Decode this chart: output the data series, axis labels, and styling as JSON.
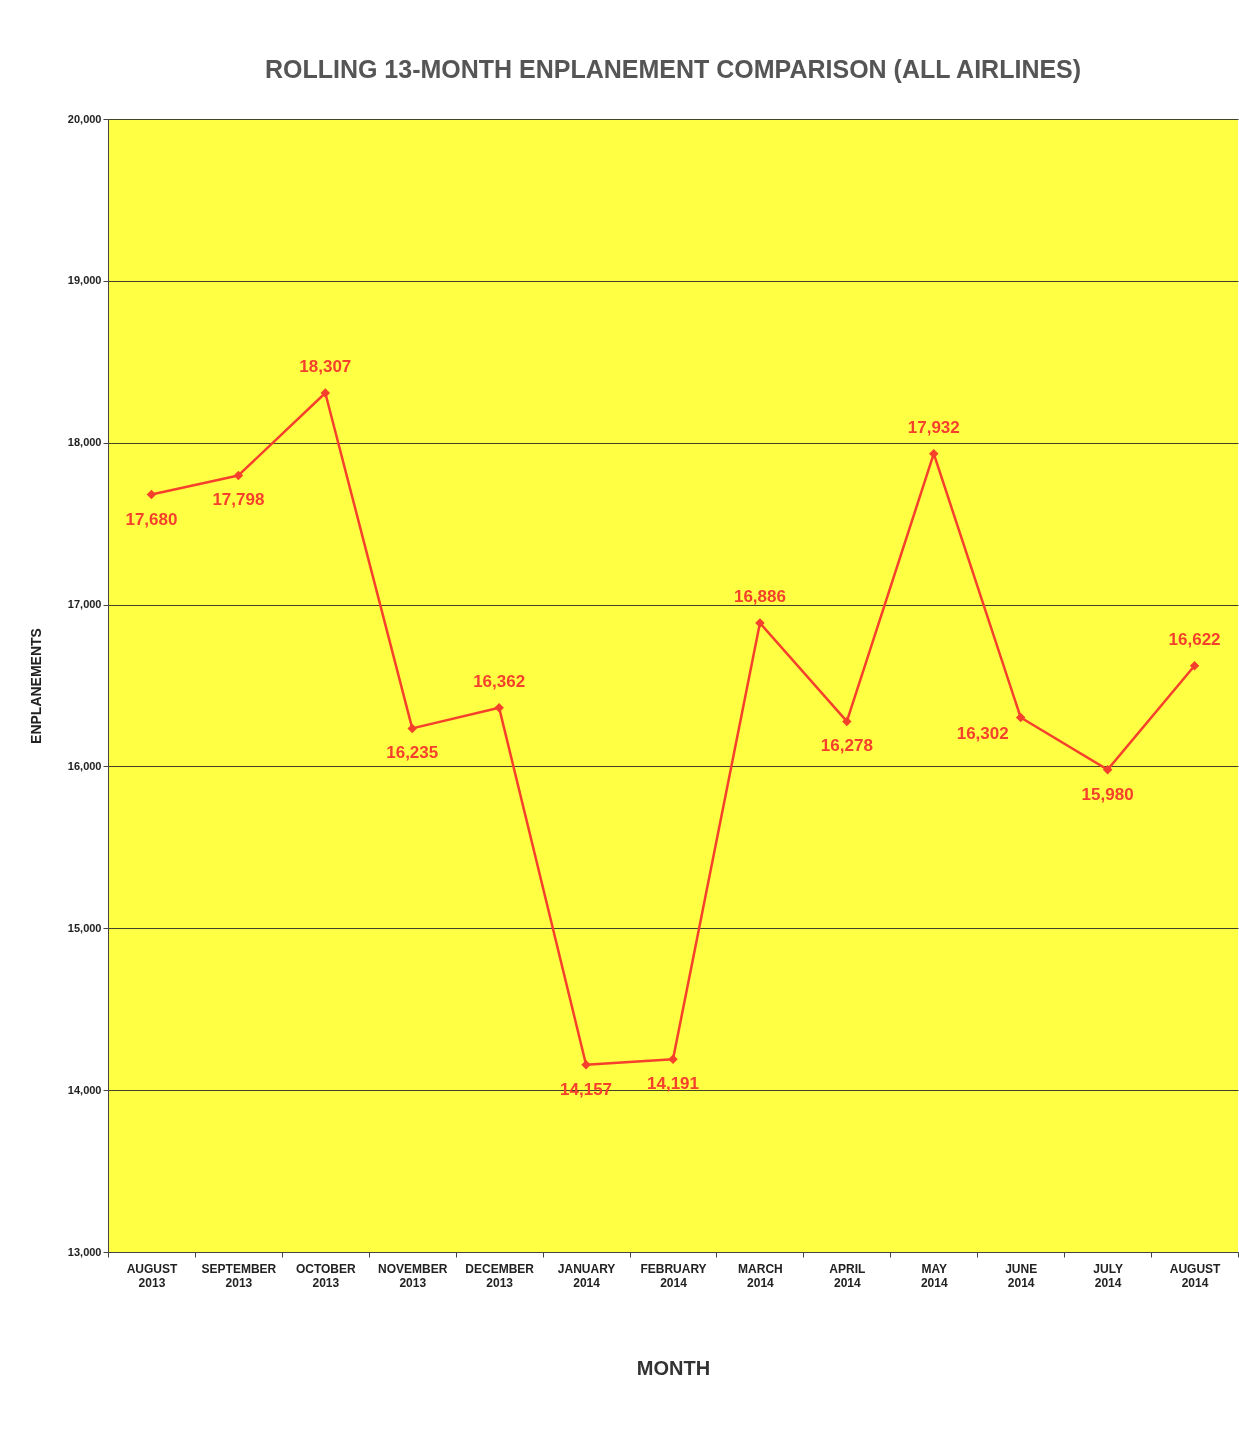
{
  "chart_data": {
    "type": "line",
    "title": "ROLLING 13-MONTH ENPLANEMENT COMPARISON   (ALL AIRLINES)",
    "xlabel": "MONTH",
    "ylabel": "ENPLANEMENTS",
    "categories": [
      "AUGUST 2013",
      "SEPTEMBER 2013",
      "OCTOBER 2013",
      "NOVEMBER 2013",
      "DECEMBER 2013",
      "JANUARY 2014",
      "FEBRUARY 2014",
      "MARCH 2014",
      "APRIL 2014",
      "MAY 2014",
      "JUNE 2014",
      "JULY 2014",
      "AUGUST 2014"
    ],
    "series": [
      {
        "color": "#f5402c",
        "values": [
          17680,
          17798,
          18307,
          16235,
          16362,
          14157,
          14191,
          16886,
          16278,
          17932,
          16302,
          15980,
          16622
        ],
        "value_labels": [
          "17,680",
          "17,798",
          "18,307",
          "16,235",
          "16,362",
          "14,157",
          "14,191",
          "16,886",
          "16,278",
          "17,932",
          "16,302",
          "15,980",
          "16,622"
        ]
      }
    ],
    "ylim": [
      13000,
      20000
    ],
    "yticks": [
      {
        "value": 13000,
        "label": "13,000"
      },
      {
        "value": 14000,
        "label": "14,000"
      },
      {
        "value": 15000,
        "label": "15,000"
      },
      {
        "value": 16000,
        "label": "16,000"
      },
      {
        "value": 17000,
        "label": "17,000"
      },
      {
        "value": 18000,
        "label": "18,000"
      },
      {
        "value": 19000,
        "label": "19,000"
      },
      {
        "value": 20000,
        "label": "20,000"
      }
    ],
    "grid": "y",
    "marker": "diamond",
    "line_style": "solid"
  }
}
